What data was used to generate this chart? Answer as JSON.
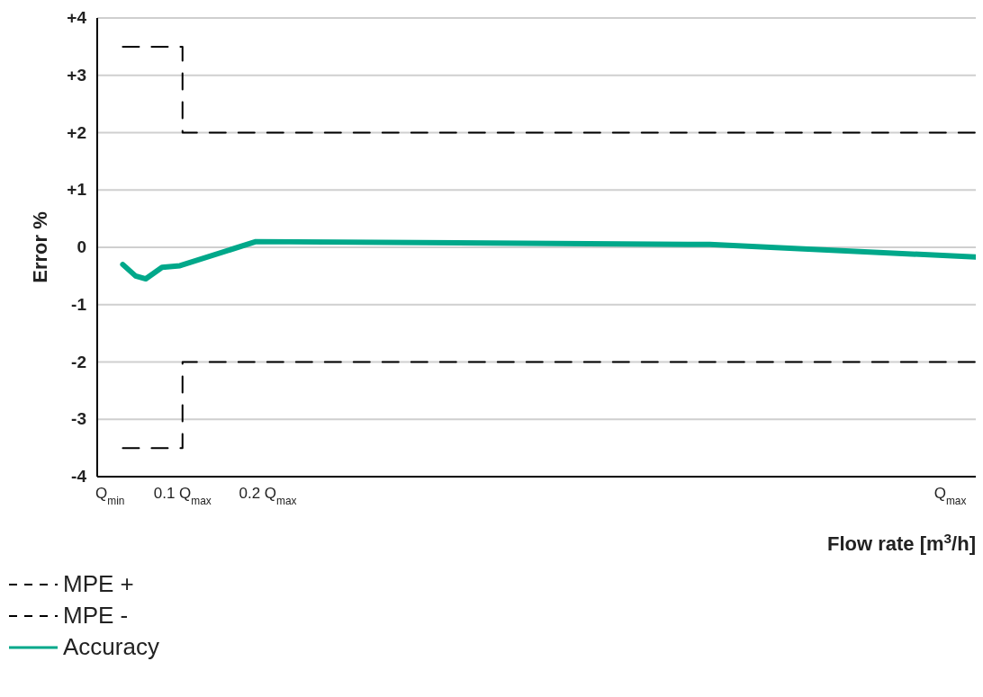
{
  "chart_data": {
    "type": "line",
    "xlabel": "Flow rate [m$^{3}$/h]",
    "ylabel": "Error %",
    "xlim": [
      0,
      1.03
    ],
    "xticks": [
      {
        "value": 0.015,
        "label": "Q$_{min}$"
      },
      {
        "value": 0.1,
        "label": "0.1 Q$_{max}$"
      },
      {
        "value": 0.2,
        "label": "0.2 Q$_{max}$"
      },
      {
        "value": 1,
        "label": "Q$_{max}$"
      }
    ],
    "ylim": [
      -4,
      4
    ],
    "yticks": [
      {
        "value": -4,
        "label": "-4"
      },
      {
        "value": -3,
        "label": "-3"
      },
      {
        "value": -2,
        "label": "-2"
      },
      {
        "value": -1,
        "label": "-1"
      },
      {
        "value": 0,
        "label": "0"
      },
      {
        "value": 1,
        "label": "+1"
      },
      {
        "value": 2,
        "label": "+2"
      },
      {
        "value": 3,
        "label": "+3"
      },
      {
        "value": 4,
        "label": "+4"
      }
    ],
    "grid": "y",
    "legend": "bottom",
    "marker": "none",
    "series": [
      {
        "name": "MPE +",
        "color": "#000000",
        "line_style": "dashed",
        "x": [
          0.03,
          0.1,
          0.1,
          1.03
        ],
        "values": [
          3.5,
          3.5,
          2,
          2
        ]
      },
      {
        "name": "MPE -",
        "color": "#000000",
        "line_style": "dashed",
        "x": [
          0.03,
          0.1,
          0.1,
          1.03
        ],
        "values": [
          -3.5,
          -3.5,
          -2,
          -2
        ]
      },
      {
        "name": "Accuracy",
        "color": "#00a88a",
        "line_style": "solid",
        "x": [
          0.03,
          0.045,
          0.057,
          0.076,
          0.097,
          0.186,
          0.718,
          1.03
        ],
        "values": [
          -0.3,
          -0.5,
          -0.55,
          -0.35,
          -0.32,
          0.1,
          0.05,
          -0.17
        ]
      }
    ]
  }
}
